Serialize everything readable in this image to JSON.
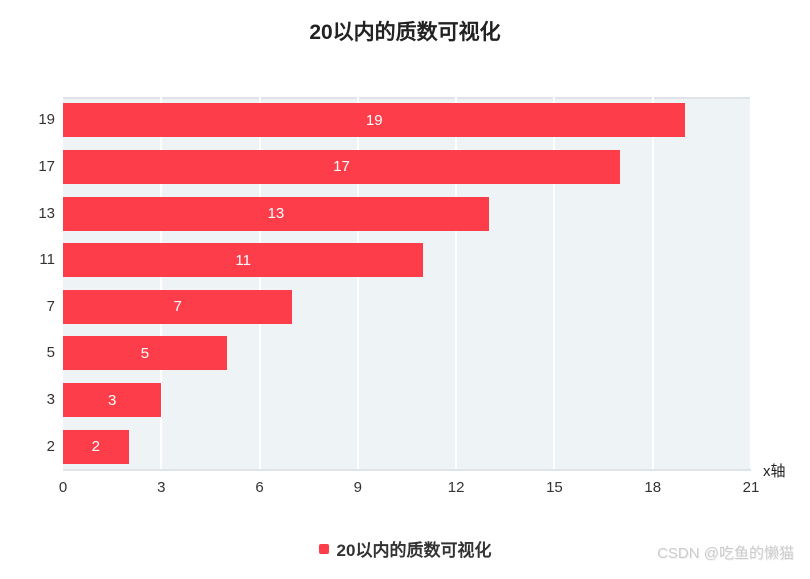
{
  "title": {
    "text": "20以内的质数可视化"
  },
  "chart_data": {
    "type": "bar",
    "orientation": "horizontal",
    "title": "20以内的质数可视化",
    "series_name": "20以内的质数可视化",
    "categories": [
      "19",
      "17",
      "13",
      "11",
      "7",
      "5",
      "3",
      "2"
    ],
    "values": [
      19,
      17,
      13,
      11,
      7,
      5,
      3,
      2
    ],
    "bar_labels": [
      "19",
      "17",
      "13",
      "11",
      "7",
      "5",
      "3",
      "2"
    ],
    "bar_label_position": "inside-center",
    "xlabel": "x轴",
    "ylabel": "",
    "xlim": [
      0,
      21
    ],
    "x_ticks": [
      0,
      3,
      6,
      9,
      12,
      15,
      18,
      21
    ],
    "grid": true,
    "legend_position": "bottom",
    "colors": {
      "bar": "#fd3e4a",
      "plot_background": "#eef3f6",
      "gridline": "#ffffff",
      "bar_label_text": "#ffffff",
      "axis_text": "#333333",
      "axis_line": "#dfe4e8",
      "title_text": "#222222"
    }
  },
  "legend": {
    "label": "20以内的质数可视化",
    "marker_color": "#fd3e4a"
  },
  "x_axis": {
    "title": "x轴"
  },
  "watermark": {
    "text": "CSDN @吃鱼的懒猫"
  }
}
